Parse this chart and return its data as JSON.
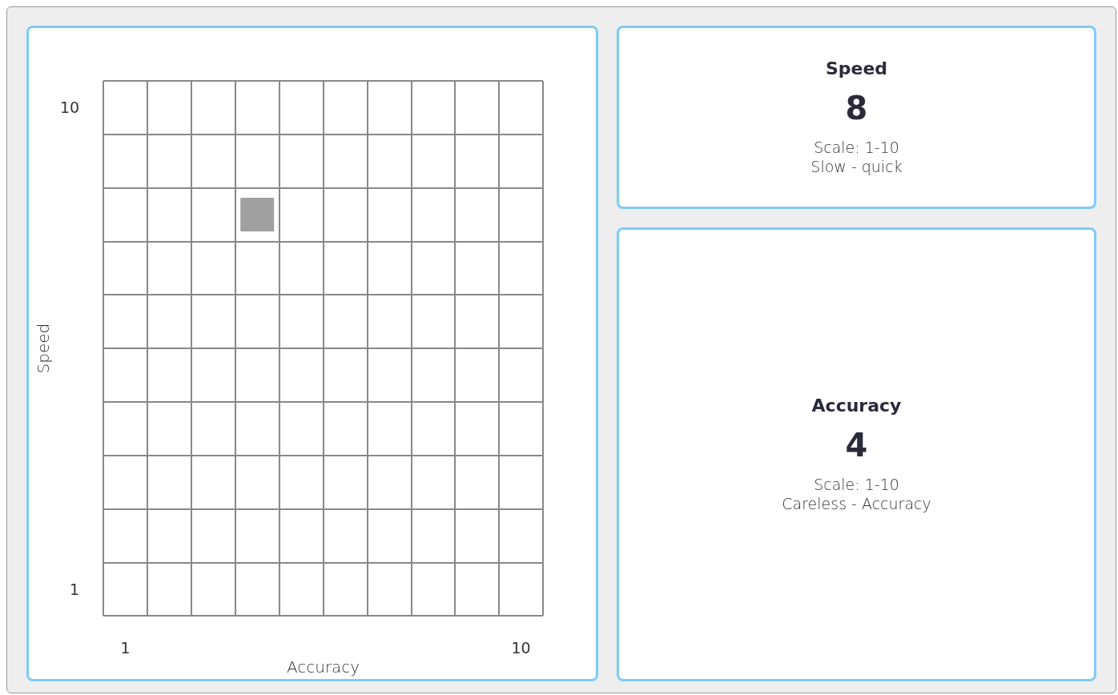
{
  "chart_data": [
    {
      "type": "scatter",
      "xlabel": "Accuracy",
      "ylabel": "Speed",
      "x": [
        4
      ],
      "values": [
        8
      ],
      "color": "#888888",
      "marker": "square",
      "grid": true,
      "xlim": [
        0.5,
        10.5
      ],
      "ylim": [
        0.5,
        10.5
      ],
      "xticks": [
        {
          "value": 0.5,
          "label": null
        },
        {
          "value": 1,
          "label": "1"
        },
        {
          "value": 1.5,
          "label": null
        },
        {
          "value": 2.5,
          "label": null
        },
        {
          "value": 3.5,
          "label": null
        },
        {
          "value": 4.5,
          "label": null
        },
        {
          "value": 5.5,
          "label": null
        },
        {
          "value": 6.5,
          "label": null
        },
        {
          "value": 7.5,
          "label": null
        },
        {
          "value": 8.5,
          "label": null
        },
        {
          "value": 9.5,
          "label": null
        },
        {
          "value": 10,
          "label": "10"
        },
        {
          "value": 10.5,
          "label": null
        }
      ],
      "yticks": [
        {
          "value": 0.5,
          "label": null
        },
        {
          "value": 1,
          "label": "1"
        },
        {
          "value": 1.5,
          "label": null
        },
        {
          "value": 2.5,
          "label": null
        },
        {
          "value": 3.5,
          "label": null
        },
        {
          "value": 4.5,
          "label": null
        },
        {
          "value": 5.5,
          "label": null
        },
        {
          "value": 6.5,
          "label": null
        },
        {
          "value": 7.5,
          "label": null
        },
        {
          "value": 8.5,
          "label": null
        },
        {
          "value": 9.5,
          "label": null
        },
        {
          "value": 10,
          "label": "10"
        },
        {
          "value": 10.5,
          "label": null
        }
      ]
    },
    {
      "type": "other",
      "title": "Speed",
      "annotations": [
        "8",
        "Scale: 1-10",
        "Slow - quick"
      ]
    },
    {
      "type": "other",
      "title": "Accuracy",
      "annotations": [
        "4",
        "Scale: 1-10",
        "Careless - Accuracy"
      ]
    }
  ]
}
